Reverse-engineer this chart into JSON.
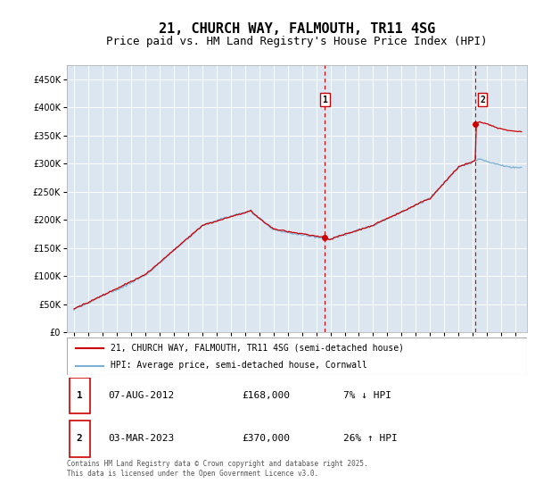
{
  "title": "21, CHURCH WAY, FALMOUTH, TR11 4SG",
  "subtitle": "Price paid vs. HM Land Registry's House Price Index (HPI)",
  "ylabel_ticks": [
    0,
    50000,
    100000,
    150000,
    200000,
    250000,
    300000,
    350000,
    400000,
    450000
  ],
  "ylabel_labels": [
    "£0",
    "£50K",
    "£100K",
    "£150K",
    "£200K",
    "£250K",
    "£300K",
    "£350K",
    "£400K",
    "£450K"
  ],
  "ylim": [
    0,
    475000
  ],
  "xlim_start": 1994.5,
  "xlim_end": 2026.8,
  "hpi_color": "#7bafd4",
  "price_color": "#cc0000",
  "dashed_color": "#cc0000",
  "plot_bg": "#dce6f1",
  "plot_bg_right": "#cddaea",
  "grid_color": "#ffffff",
  "sale1_x": 2012.6,
  "sale1_y": 168000,
  "sale2_x": 2023.17,
  "sale2_y": 370000,
  "sale1_label": "1",
  "sale2_label": "2",
  "legend_line1": "21, CHURCH WAY, FALMOUTH, TR11 4SG (semi-detached house)",
  "legend_line2": "HPI: Average price, semi-detached house, Cornwall",
  "table_rows": [
    {
      "num": "1",
      "date": "07-AUG-2012",
      "price": "£168,000",
      "hpi": "7% ↓ HPI"
    },
    {
      "num": "2",
      "date": "03-MAR-2023",
      "price": "£370,000",
      "hpi": "26% ↑ HPI"
    }
  ],
  "footer": "Contains HM Land Registry data © Crown copyright and database right 2025.\nThis data is licensed under the Open Government Licence v3.0.",
  "title_fontsize": 11,
  "subtitle_fontsize": 9,
  "tick_fontsize": 7
}
